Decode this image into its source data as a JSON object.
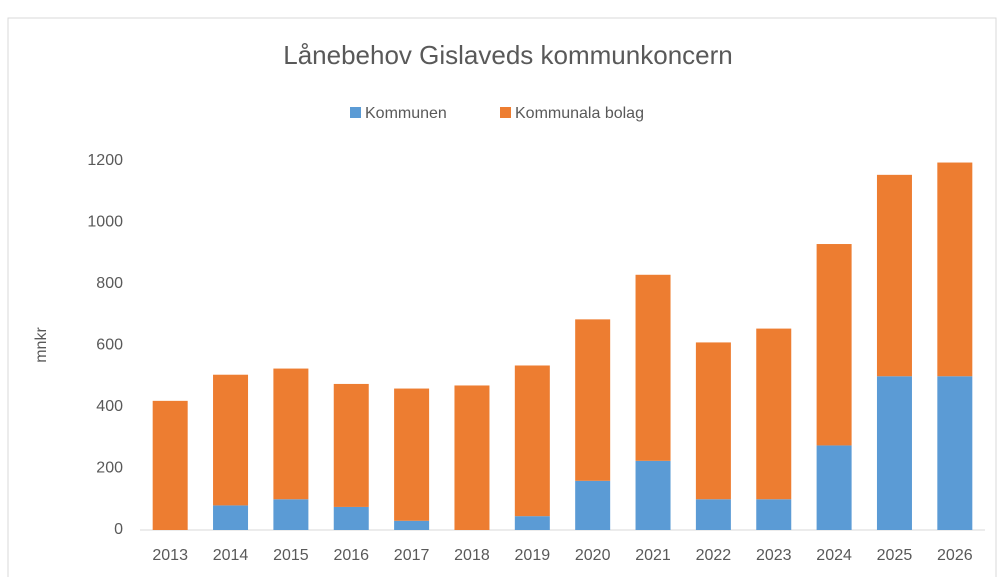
{
  "chart_data": {
    "type": "stacked_bar",
    "title": "Lånebehov Gislaveds kommunkoncern",
    "y_label": "mnkr",
    "categories": [
      "2013",
      "2014",
      "2015",
      "2016",
      "2017",
      "2018",
      "2019",
      "2020",
      "2021",
      "2022",
      "2023",
      "2024",
      "2025",
      "2026"
    ],
    "series": [
      {
        "name": "Kommunen",
        "color": "#5b9bd5",
        "values": [
          0,
          80,
          100,
          75,
          30,
          0,
          45,
          160,
          225,
          100,
          100,
          275,
          500,
          500
        ]
      },
      {
        "name": "Kommunala bolag",
        "color": "#ed7d31",
        "values": [
          420,
          425,
          425,
          400,
          430,
          470,
          490,
          525,
          605,
          510,
          555,
          655,
          655,
          695
        ]
      }
    ],
    "ylim": [
      0,
      1200
    ],
    "yticks": [
      0,
      200,
      400,
      600,
      800,
      1000,
      1200
    ],
    "grid": false,
    "legend": "top"
  }
}
